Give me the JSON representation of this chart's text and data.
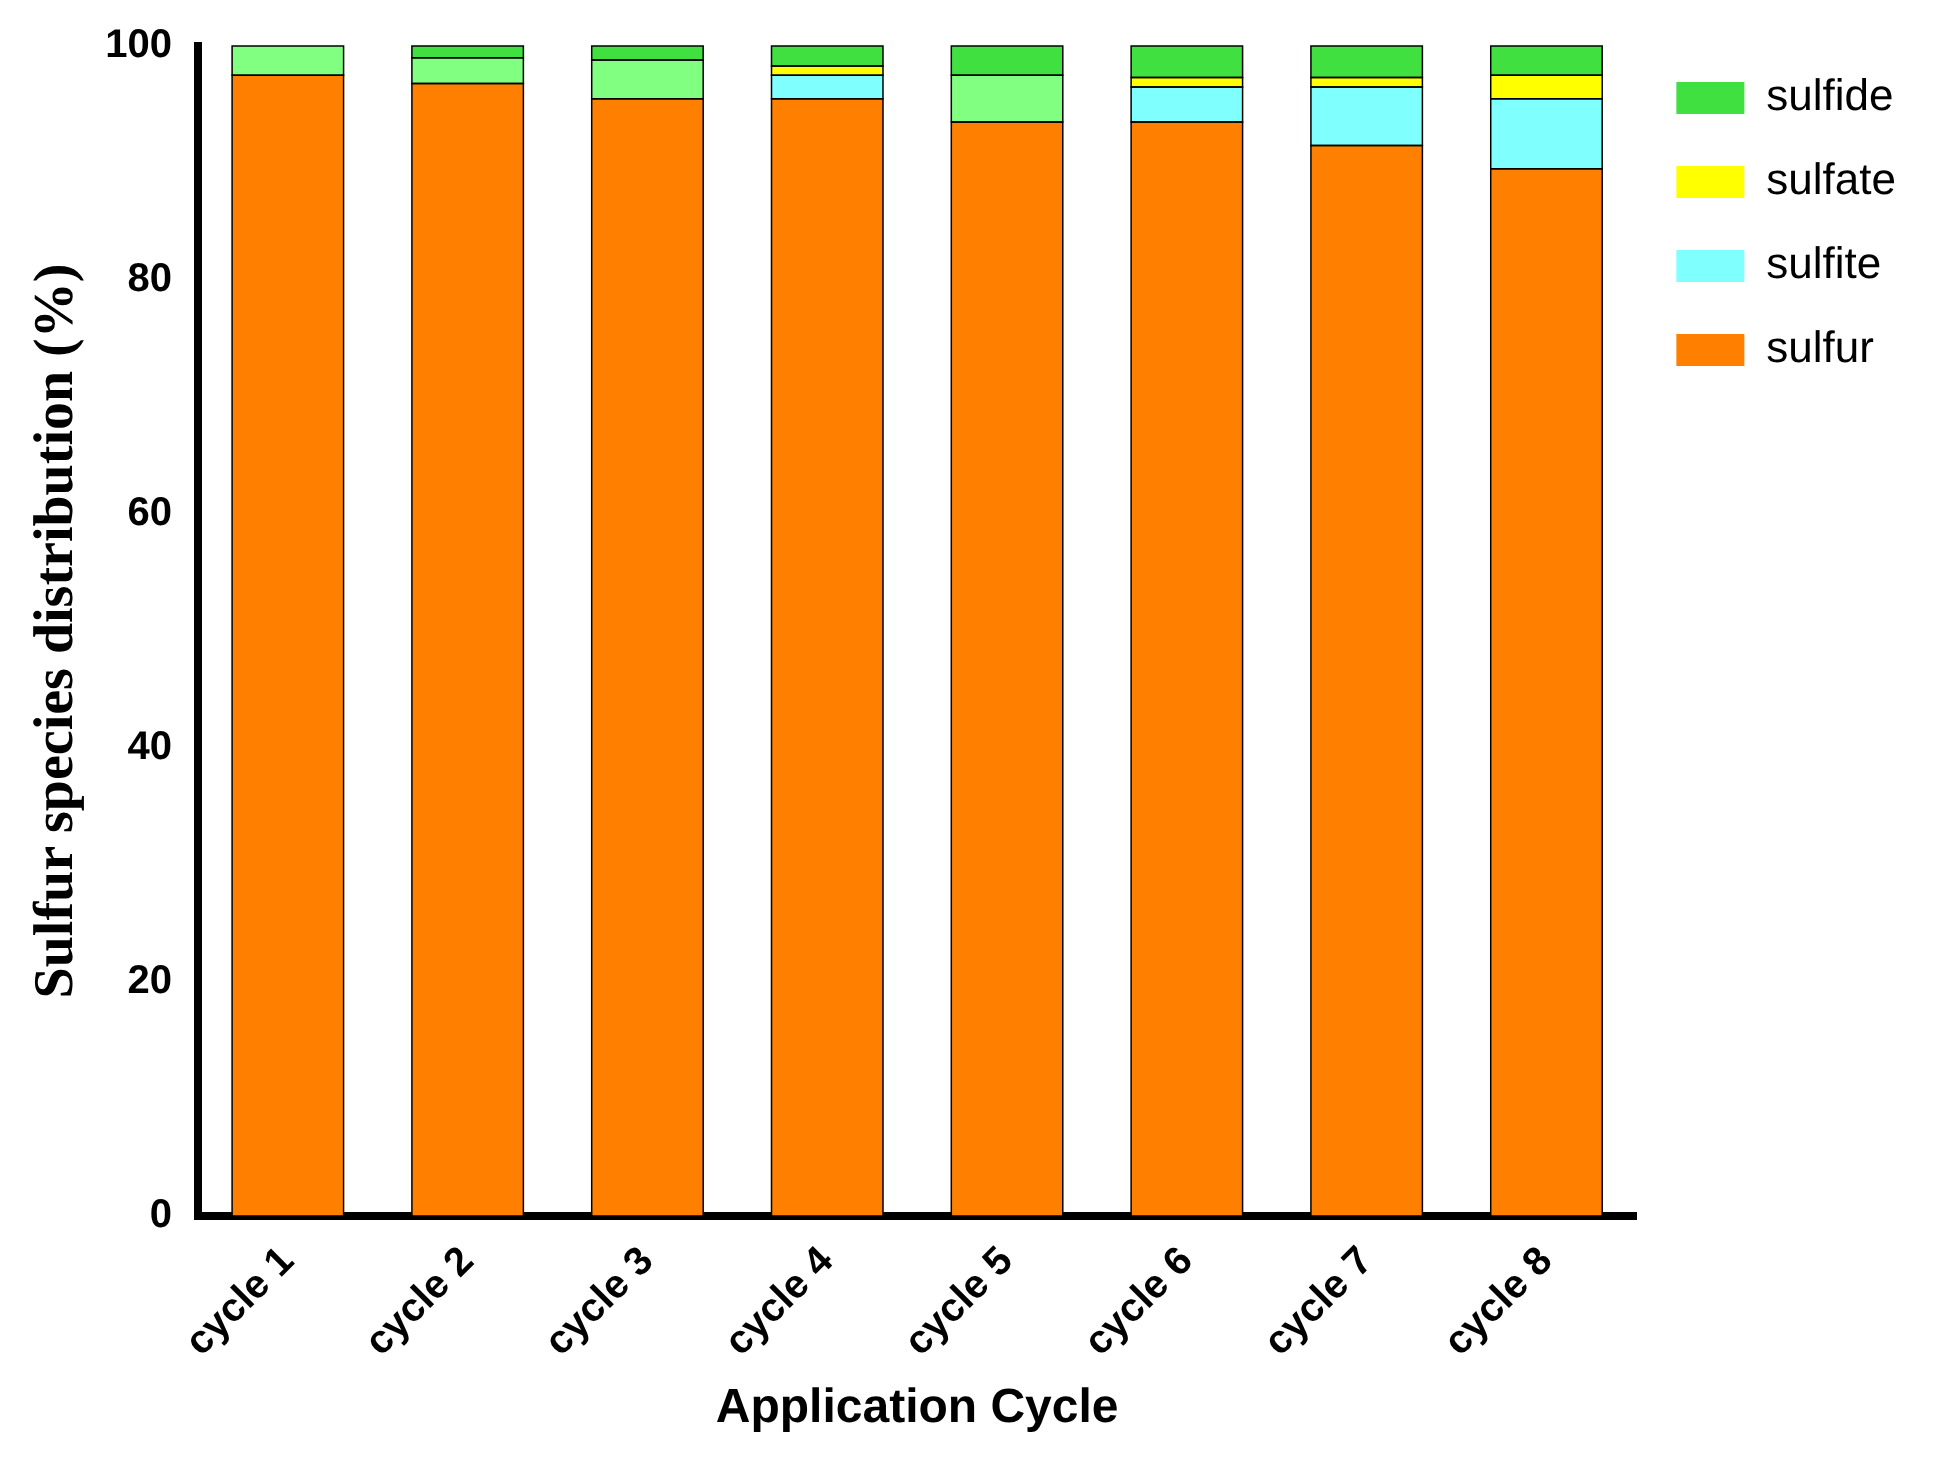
{
  "chart_data": {
    "type": "bar",
    "stacked": true,
    "xlabel": "Application Cycle",
    "ylabel": "Sulfur species distribution (%)",
    "categories": [
      "cycle 1",
      "cycle 2",
      "cycle 3",
      "cycle 4",
      "cycle 5",
      "cycle 6",
      "cycle 7",
      "cycle 8"
    ],
    "series": [
      {
        "name": "sulfur",
        "color": "#ff8000",
        "values": [
          97.5,
          96.8,
          95.5,
          95.5,
          93.5,
          93.5,
          91.5,
          89.5
        ]
      },
      {
        "name": "sulfite",
        "color": "#80ffff",
        "values": [
          0,
          0,
          0,
          2,
          0,
          3,
          5,
          6
        ]
      },
      {
        "color": "#80ff80",
        "values": [
          2.5,
          2.2,
          3.3,
          0,
          4,
          0,
          0,
          0
        ]
      },
      {
        "name": "sulfate",
        "color": "#ffff00",
        "values": [
          0,
          0,
          0,
          0.8,
          0,
          0.8,
          0.8,
          2
        ]
      },
      {
        "name": "sulfide",
        "color": "#40e040",
        "values": [
          0,
          1,
          1.2,
          1.7,
          2.5,
          2.7,
          2.7,
          2.5
        ]
      }
    ],
    "ylim": [
      0,
      100
    ],
    "yticks": [
      0,
      20,
      40,
      60,
      80,
      100
    ],
    "grid": false,
    "legend": "right"
  }
}
